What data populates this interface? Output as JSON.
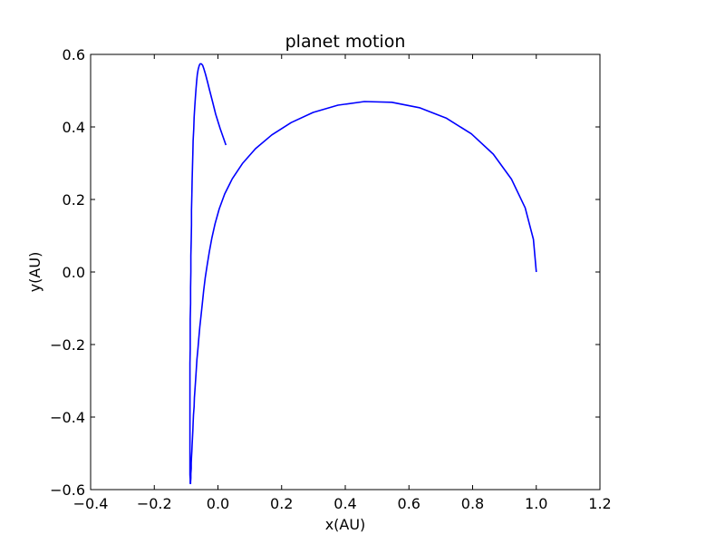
{
  "chart_data": {
    "type": "line",
    "title": "planet motion",
    "xlabel": "x(AU)",
    "ylabel": "y(AU)",
    "xlim": [
      -0.4,
      1.2
    ],
    "ylim": [
      -0.6,
      0.6
    ],
    "xticks": [
      -0.4,
      -0.2,
      0.0,
      0.2,
      0.4,
      0.6,
      0.8,
      1.0,
      1.2
    ],
    "yticks": [
      -0.6,
      -0.4,
      -0.2,
      0.0,
      0.2,
      0.4,
      0.6
    ],
    "xtick_labels": [
      "−0.4",
      "−0.2",
      "0.0",
      "0.2",
      "0.4",
      "0.6",
      "0.8",
      "1.0",
      "1.2"
    ],
    "ytick_labels": [
      "−0.6",
      "−0.4",
      "−0.2",
      "0.0",
      "0.2",
      "0.4",
      "0.6"
    ],
    "grid": false,
    "series": [
      {
        "color": "#0000ff",
        "x": [
          1.0,
          0.991,
          0.965,
          0.922,
          0.865,
          0.796,
          0.718,
          0.633,
          0.546,
          0.46,
          0.377,
          0.299,
          0.23,
          0.169,
          0.118,
          0.077,
          0.045,
          0.021,
          0.004,
          -0.009,
          -0.019,
          -0.027,
          -0.034,
          -0.04,
          -0.045,
          -0.049,
          -0.053,
          -0.057,
          -0.06,
          -0.063,
          -0.066,
          -0.068,
          -0.07,
          -0.072,
          -0.074,
          -0.075,
          -0.077,
          -0.078,
          -0.079,
          -0.08,
          -0.081,
          -0.082,
          -0.083,
          -0.084,
          -0.084,
          -0.085,
          -0.085,
          -0.086,
          -0.086,
          -0.087,
          -0.087,
          -0.087,
          -0.088,
          -0.088,
          -0.088,
          -0.088,
          -0.088,
          -0.088,
          -0.088,
          -0.088,
          -0.088,
          -0.088,
          -0.088,
          -0.088,
          -0.087,
          -0.087,
          -0.087,
          -0.086,
          -0.086,
          -0.085,
          -0.085,
          -0.084,
          -0.083,
          -0.083,
          -0.082,
          -0.081,
          -0.08,
          -0.079,
          -0.078,
          -0.076,
          -0.075,
          -0.073,
          -0.071,
          -0.069,
          -0.067,
          -0.065,
          -0.062,
          -0.059,
          -0.056,
          -0.052,
          -0.048,
          -0.044,
          -0.039,
          -0.033,
          -0.026,
          -0.017,
          -0.007,
          0.007,
          0.025
        ],
        "y": [
          0.0,
          0.09,
          0.177,
          0.256,
          0.325,
          0.381,
          0.424,
          0.453,
          0.468,
          0.47,
          0.46,
          0.44,
          0.412,
          0.378,
          0.34,
          0.299,
          0.257,
          0.215,
          0.174,
          0.133,
          0.094,
          0.056,
          0.019,
          -0.017,
          -0.052,
          -0.086,
          -0.119,
          -0.151,
          -0.182,
          -0.212,
          -0.241,
          -0.269,
          -0.296,
          -0.322,
          -0.347,
          -0.371,
          -0.394,
          -0.416,
          -0.437,
          -0.457,
          -0.476,
          -0.494,
          -0.511,
          -0.527,
          -0.542,
          -0.556,
          -0.568,
          -0.579,
          -0.583,
          -0.583,
          -0.579,
          -0.571,
          -0.559,
          -0.544,
          -0.526,
          -0.505,
          -0.481,
          -0.455,
          -0.426,
          -0.395,
          -0.362,
          -0.327,
          -0.29,
          -0.252,
          -0.212,
          -0.171,
          -0.13,
          -0.087,
          -0.044,
          0.0,
          0.044,
          0.087,
          0.13,
          0.171,
          0.212,
          0.252,
          0.29,
          0.327,
          0.362,
          0.395,
          0.426,
          0.455,
          0.481,
          0.505,
          0.526,
          0.544,
          0.559,
          0.569,
          0.574,
          0.574,
          0.57,
          0.56,
          0.545,
          0.525,
          0.5,
          0.47,
          0.435,
          0.395,
          0.35
        ]
      }
    ]
  }
}
